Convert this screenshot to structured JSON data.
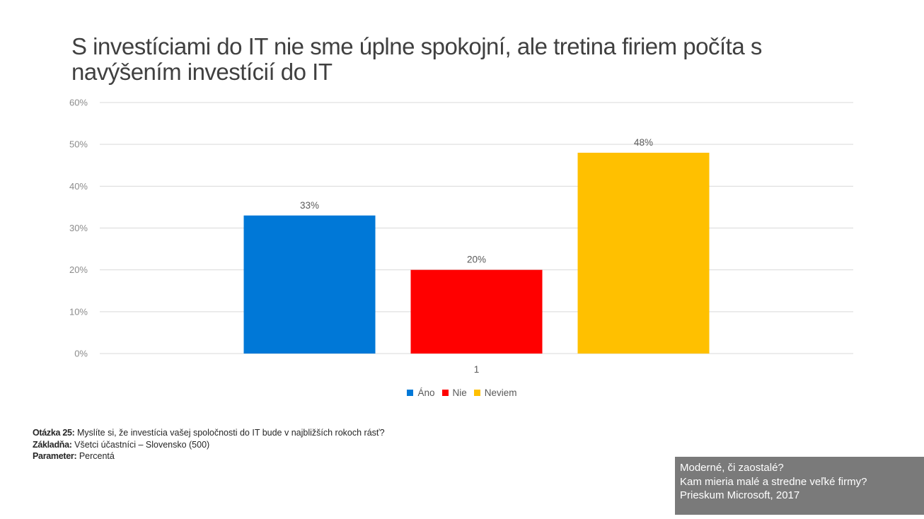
{
  "title": "S investíciami do IT nie sme úplne spokojní, ale tretina firiem počíta s navýšením investícií do IT",
  "chart_data": {
    "type": "bar",
    "categories": [
      "1"
    ],
    "series": [
      {
        "name": "Áno",
        "values": [
          33
        ],
        "label": "33%",
        "color": "#0078d7"
      },
      {
        "name": "Nie",
        "values": [
          20
        ],
        "label": "20%",
        "color": "#ff0000"
      },
      {
        "name": "Neviem",
        "values": [
          48
        ],
        "label": "48%",
        "color": "#ffc000"
      }
    ],
    "ylim": [
      0,
      60
    ],
    "yticks": [
      "0%",
      "10%",
      "20%",
      "30%",
      "40%",
      "50%",
      "60%"
    ],
    "xlabel": "",
    "ylabel": "",
    "grid": true,
    "legend_position": "bottom"
  },
  "notes": {
    "question_label": "Otázka 25:",
    "question_text": "Myslíte si, že investícia vašej spoločnosti do IT bude v najbližších rokoch rásť?",
    "base_label": "Základňa:",
    "base_text": "Všetci účastníci – Slovensko (500)",
    "param_label": "Parameter:",
    "param_text": "Percentá"
  },
  "footer": {
    "line1": "Moderné, či zaostalé?",
    "line2": "Kam mieria malé a stredne veľké firmy?",
    "line3": "Prieskum Microsoft, 2017"
  },
  "colors": {
    "gridline": "#d9d9d9",
    "axis_text": "#8c8c8c",
    "label_text": "#595959"
  }
}
